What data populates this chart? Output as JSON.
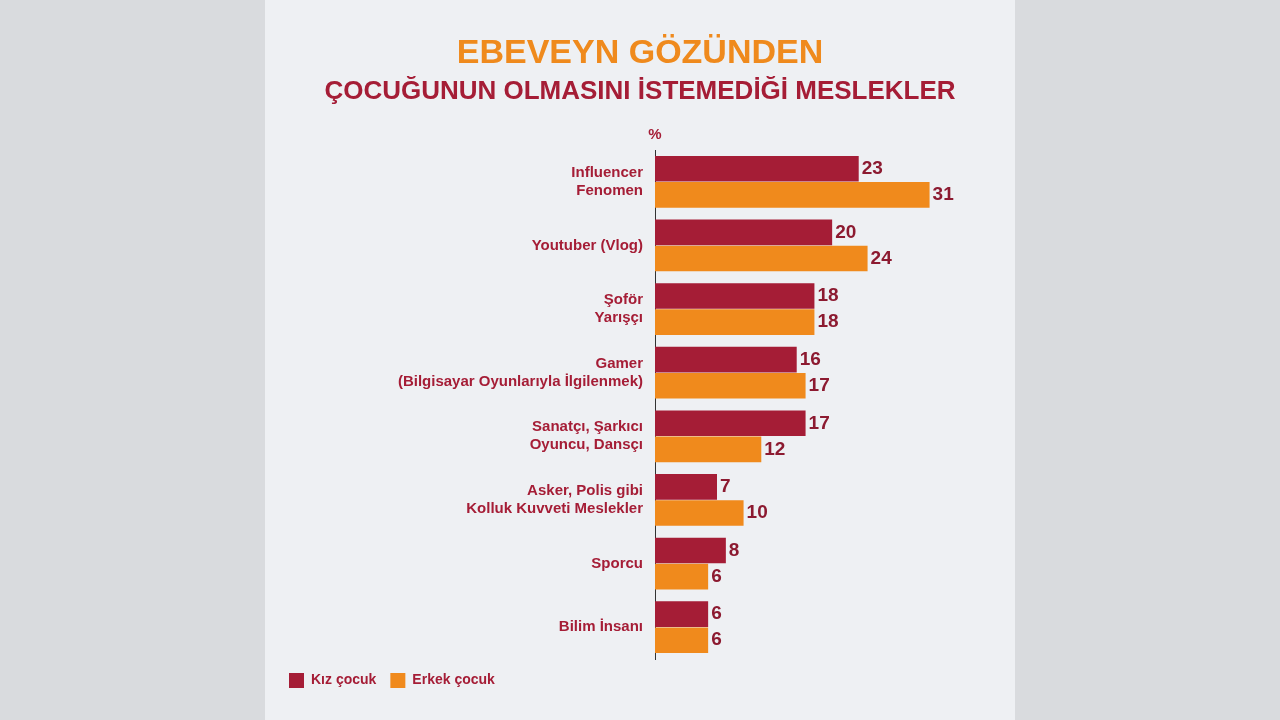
{
  "chart_data": {
    "type": "bar",
    "orientation": "horizontal",
    "title": "EBEVEYN GÖZÜNDEN",
    "subtitle": "ÇOCUĞUNUN OLMASINI İSTEMEDİĞİ MESLEKLER",
    "annotations": [
      "%"
    ],
    "categories": [
      "Influencer\nFenomen",
      "Youtuber (Vlog)",
      "Şoför\nYarışçı",
      "Gamer\n(Bilgisayar Oyunlarıyla İlgilenmek)",
      "Sanatçı, Şarkıcı\nOyuncu, Dansçı",
      "Asker, Polis gibi\nKolluk Kuvveti Meslekler",
      "Sporcu",
      "Bilim İnsanı"
    ],
    "series": [
      {
        "name": "Kız çocuk",
        "color": "#a51d36",
        "values": [
          23,
          20,
          18,
          16,
          17,
          7,
          8,
          6
        ]
      },
      {
        "name": "Erkek çocuk",
        "color": "#f08a1c",
        "values": [
          31,
          24,
          18,
          17,
          12,
          10,
          6,
          6
        ]
      }
    ],
    "data_labels": true,
    "legend": "bottom left"
  }
}
